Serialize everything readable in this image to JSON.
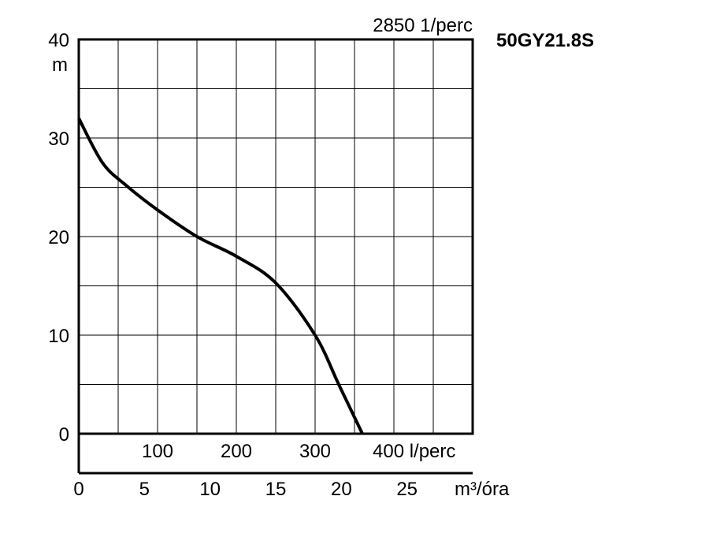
{
  "chart_data": {
    "type": "line",
    "title": "50GY21.8S",
    "subtitle": "2850 1/perc",
    "ylabel": "m",
    "xlabel": "m³/óra",
    "ylim": [
      0,
      40
    ],
    "y_ticks": [
      "0",
      "10",
      "20",
      "30",
      "40"
    ],
    "x_flow_min_ticks": [
      "100",
      "200",
      "300",
      "400 l/perc"
    ],
    "x_flow_hour_ticks": [
      "0",
      "5",
      "10",
      "15",
      "20",
      "25"
    ],
    "xlim_l_per_min": [
      0,
      500
    ],
    "grid": true,
    "series": [
      {
        "x": [
          0,
          30,
          60,
          100,
          150,
          200,
          250,
          300,
          330,
          360
        ],
        "y": [
          32,
          27.5,
          25.2,
          22.7,
          20,
          18,
          15.3,
          10,
          5,
          0
        ]
      }
    ]
  }
}
